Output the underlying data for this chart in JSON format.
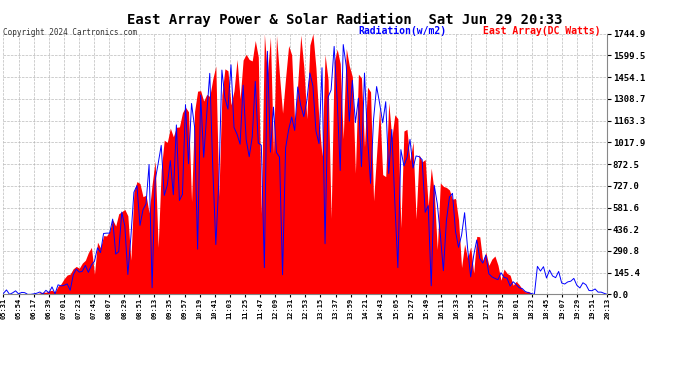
{
  "title": "East Array Power & Solar Radiation  Sat Jun 29 20:33",
  "copyright": "Copyright 2024 Cartronics.com",
  "legend_radiation": "Radiation(w/m2)",
  "legend_east": "East Array(DC Watts)",
  "y_ticks": [
    0.0,
    145.4,
    290.8,
    436.2,
    581.6,
    727.0,
    872.5,
    1017.9,
    1163.3,
    1308.7,
    1454.1,
    1599.5,
    1744.9
  ],
  "y_max": 1744.9,
  "y_min": 0.0,
  "x_labels": [
    "05:31",
    "05:54",
    "06:17",
    "06:39",
    "07:01",
    "07:23",
    "07:45",
    "08:07",
    "08:29",
    "08:51",
    "09:13",
    "09:35",
    "09:57",
    "10:19",
    "10:41",
    "11:03",
    "11:25",
    "11:47",
    "12:09",
    "12:31",
    "12:53",
    "13:15",
    "13:37",
    "13:59",
    "14:21",
    "14:43",
    "15:05",
    "15:27",
    "15:49",
    "16:11",
    "16:33",
    "16:55",
    "17:17",
    "17:39",
    "18:01",
    "18:23",
    "18:45",
    "19:07",
    "19:29",
    "19:51",
    "20:13"
  ],
  "background_color": "#ffffff",
  "plot_bg_color": "#ffffff",
  "grid_color": "#aaaaaa",
  "red_color": "#ff0000",
  "blue_color": "#0000ff",
  "title_color": "#000000",
  "tick_color": "#000000",
  "n_points": 200,
  "seed": 1234
}
